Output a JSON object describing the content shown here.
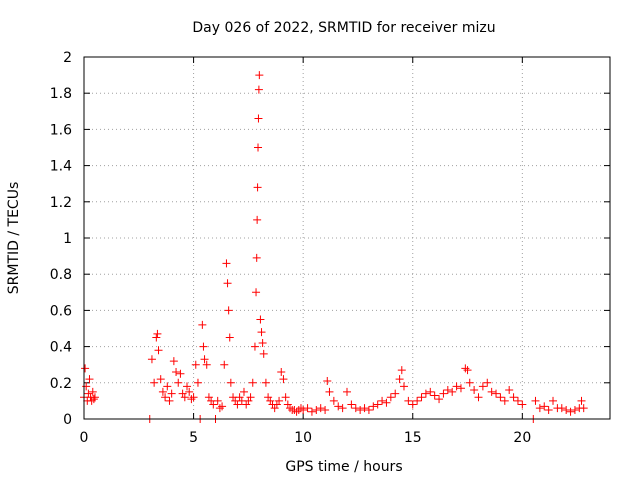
{
  "chart_data": {
    "type": "scatter",
    "title": "Day 026 of 2022, SRMTID for receiver mizu",
    "xlabel": "GPS time / hours",
    "ylabel": "SRMTID / TECUs",
    "xlim": [
      0,
      24
    ],
    "ylim": [
      0,
      2
    ],
    "x_ticks": [
      0,
      5,
      10,
      15,
      20
    ],
    "x_tick_labels": [
      "0",
      "5",
      "10",
      "15",
      "20"
    ],
    "y_ticks": [
      0,
      0.2,
      0.4,
      0.6,
      0.8,
      1,
      1.2,
      1.4,
      1.6,
      1.8,
      2
    ],
    "y_tick_labels": [
      "0",
      "0.2",
      "0.4",
      "0.6",
      "0.8",
      "1",
      "1.2",
      "1.4",
      "1.6",
      "1.8",
      "2"
    ],
    "grid": true,
    "marker": "+",
    "color": "#ff0000",
    "series": [
      {
        "name": "SRMTID",
        "x": [
          0.0,
          0.05,
          0.1,
          0.15,
          0.2,
          0.25,
          0.3,
          0.35,
          0.4,
          0.45,
          0.5,
          3.0,
          3.1,
          3.2,
          3.3,
          3.35,
          3.4,
          3.5,
          3.6,
          3.7,
          3.8,
          3.9,
          4.0,
          4.1,
          4.2,
          4.3,
          4.4,
          4.5,
          4.6,
          4.7,
          4.8,
          4.9,
          5.0,
          5.1,
          5.2,
          5.3,
          5.4,
          5.45,
          5.5,
          5.6,
          5.7,
          5.8,
          5.9,
          6.0,
          6.1,
          6.2,
          6.3,
          6.4,
          6.5,
          6.55,
          6.6,
          6.65,
          6.7,
          6.8,
          6.9,
          7.0,
          7.1,
          7.2,
          7.3,
          7.4,
          7.5,
          7.6,
          7.7,
          7.8,
          7.85,
          7.88,
          7.9,
          7.92,
          7.94,
          7.96,
          7.98,
          8.0,
          8.05,
          8.1,
          8.15,
          8.2,
          8.3,
          8.4,
          8.5,
          8.6,
          8.7,
          8.8,
          8.9,
          9.0,
          9.1,
          9.2,
          9.3,
          9.4,
          9.5,
          9.6,
          9.7,
          9.8,
          9.9,
          10.0,
          10.2,
          10.4,
          10.6,
          10.8,
          11.0,
          11.1,
          11.2,
          11.4,
          11.6,
          11.8,
          12.0,
          12.2,
          12.4,
          12.6,
          12.8,
          13.0,
          13.2,
          13.4,
          13.6,
          13.8,
          14.0,
          14.2,
          14.4,
          14.5,
          14.6,
          14.8,
          15.0,
          15.2,
          15.4,
          15.6,
          15.8,
          16.0,
          16.2,
          16.4,
          16.6,
          16.8,
          17.0,
          17.2,
          17.4,
          17.5,
          17.6,
          17.8,
          18.0,
          18.2,
          18.4,
          18.6,
          18.8,
          19.0,
          19.2,
          19.4,
          19.6,
          19.8,
          20.0,
          20.5,
          20.6,
          20.8,
          21.0,
          21.2,
          21.4,
          21.6,
          21.8,
          22.0,
          22.2,
          22.4,
          22.6,
          22.7,
          22.8
        ],
        "y": [
          0.12,
          0.28,
          0.18,
          0.1,
          0.14,
          0.22,
          0.12,
          0.1,
          0.15,
          0.11,
          0.12,
          0.0,
          0.33,
          0.2,
          0.45,
          0.47,
          0.38,
          0.22,
          0.15,
          0.12,
          0.18,
          0.1,
          0.14,
          0.32,
          0.26,
          0.2,
          0.25,
          0.14,
          0.12,
          0.18,
          0.15,
          0.11,
          0.12,
          0.3,
          0.2,
          0.0,
          0.52,
          0.4,
          0.33,
          0.3,
          0.12,
          0.1,
          0.08,
          0.0,
          0.1,
          0.06,
          0.07,
          0.3,
          0.86,
          0.75,
          0.6,
          0.45,
          0.2,
          0.12,
          0.1,
          0.08,
          0.12,
          0.1,
          0.15,
          0.08,
          0.1,
          0.12,
          0.2,
          0.4,
          0.7,
          0.89,
          1.1,
          1.28,
          1.5,
          1.66,
          1.82,
          1.9,
          0.55,
          0.48,
          0.42,
          0.36,
          0.2,
          0.12,
          0.1,
          0.08,
          0.06,
          0.08,
          0.1,
          0.26,
          0.22,
          0.12,
          0.08,
          0.06,
          0.05,
          0.05,
          0.04,
          0.05,
          0.06,
          0.05,
          0.06,
          0.04,
          0.05,
          0.06,
          0.05,
          0.21,
          0.15,
          0.1,
          0.07,
          0.06,
          0.15,
          0.08,
          0.06,
          0.05,
          0.06,
          0.05,
          0.07,
          0.08,
          0.1,
          0.09,
          0.12,
          0.14,
          0.22,
          0.27,
          0.18,
          0.1,
          0.08,
          0.1,
          0.12,
          0.14,
          0.15,
          0.13,
          0.11,
          0.14,
          0.16,
          0.15,
          0.18,
          0.17,
          0.28,
          0.27,
          0.2,
          0.16,
          0.12,
          0.18,
          0.2,
          0.15,
          0.14,
          0.12,
          0.1,
          0.16,
          0.12,
          0.1,
          0.08,
          0.0,
          0.1,
          0.06,
          0.07,
          0.05,
          0.1,
          0.06,
          0.06,
          0.05,
          0.04,
          0.05,
          0.06,
          0.1,
          0.06
        ]
      }
    ]
  }
}
